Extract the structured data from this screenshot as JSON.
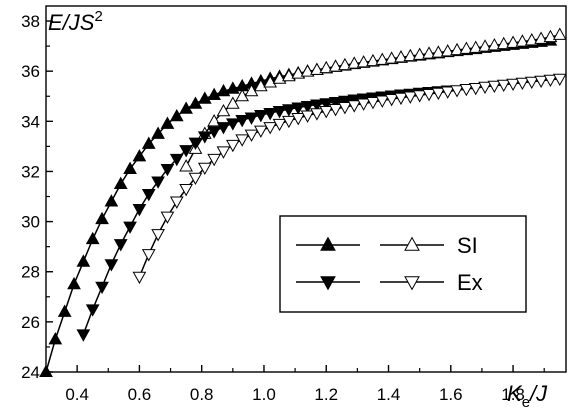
{
  "chart_data": {
    "type": "line",
    "title": "",
    "ylabel": {
      "main": "E/JS",
      "sup": "2"
    },
    "xlabel": {
      "k": "K",
      "sub": "e",
      "tail": "/J"
    },
    "xlim": [
      0.3,
      1.97
    ],
    "ylim": [
      24,
      38.6
    ],
    "xticks": [
      0.4,
      0.6,
      0.8,
      1.0,
      1.2,
      1.4,
      1.6,
      1.8
    ],
    "xtick_labels": [
      "0.4",
      "0.6",
      "0.8",
      "1.0",
      "1.2",
      "1.4",
      "1.6",
      "1.8"
    ],
    "yticks": [
      24,
      26,
      28,
      30,
      32,
      34,
      36,
      38
    ],
    "ytick_labels": [
      "24",
      "26",
      "28",
      "30",
      "32",
      "34",
      "36",
      "38"
    ],
    "grid": false,
    "legend": {
      "placement": "right",
      "rows": [
        {
          "label": "SI",
          "left_marker": "triangle-up-filled",
          "right_marker": "triangle-up-open"
        },
        {
          "label": "Ex",
          "left_marker": "triangle-down-filled",
          "right_marker": "triangle-down-open"
        }
      ]
    },
    "series": [
      {
        "marker": "triangle-up-filled",
        "x": [
          0.3,
          0.33,
          0.36,
          0.39,
          0.42,
          0.45,
          0.48,
          0.51,
          0.54,
          0.57,
          0.6,
          0.63,
          0.66,
          0.69,
          0.72,
          0.75,
          0.78,
          0.81,
          0.84,
          0.87,
          0.9,
          0.93,
          0.96,
          0.99,
          1.02,
          1.05,
          1.08,
          1.11,
          1.14,
          1.17,
          1.2,
          1.23,
          1.26,
          1.29,
          1.32,
          1.35,
          1.38,
          1.41,
          1.44,
          1.47,
          1.5,
          1.53,
          1.56,
          1.59,
          1.62,
          1.65,
          1.68,
          1.71,
          1.74,
          1.77,
          1.8,
          1.83,
          1.86,
          1.89,
          1.92
        ],
        "y": [
          24.0,
          25.3,
          26.4,
          27.5,
          28.4,
          29.3,
          30.1,
          30.8,
          31.5,
          32.1,
          32.6,
          33.1,
          33.5,
          33.9,
          34.2,
          34.5,
          34.7,
          34.9,
          35.05,
          35.2,
          35.3,
          35.4,
          35.5,
          35.6,
          35.7,
          35.78,
          35.85,
          35.92,
          35.99,
          36.05,
          36.11,
          36.17,
          36.22,
          36.28,
          36.33,
          36.38,
          36.43,
          36.48,
          36.53,
          36.58,
          36.62,
          36.67,
          36.71,
          36.76,
          36.8,
          36.84,
          36.88,
          36.93,
          36.97,
          37.01,
          37.05,
          37.09,
          37.13,
          37.17,
          37.22
        ]
      },
      {
        "marker": "triangle-up-open",
        "x": [
          0.75,
          0.78,
          0.81,
          0.84,
          0.87,
          0.9,
          0.93,
          0.96,
          0.99,
          1.02,
          1.05,
          1.08,
          1.11,
          1.14,
          1.17,
          1.2,
          1.23,
          1.26,
          1.29,
          1.32,
          1.35,
          1.38,
          1.41,
          1.44,
          1.47,
          1.5,
          1.53,
          1.56,
          1.59,
          1.62,
          1.65,
          1.68,
          1.71,
          1.74,
          1.77,
          1.8,
          1.83,
          1.86,
          1.89,
          1.92,
          1.95
        ],
        "y": [
          32.2,
          32.9,
          33.5,
          34.0,
          34.4,
          34.7,
          35.0,
          35.2,
          35.4,
          35.55,
          35.7,
          35.8,
          35.9,
          35.98,
          36.05,
          36.12,
          36.18,
          36.24,
          36.3,
          36.35,
          36.4,
          36.45,
          36.5,
          36.55,
          36.6,
          36.65,
          36.7,
          36.74,
          36.79,
          36.84,
          36.89,
          36.93,
          36.98,
          37.03,
          37.08,
          37.13,
          37.18,
          37.23,
          37.29,
          37.36,
          37.45
        ]
      },
      {
        "marker": "triangle-down-filled",
        "x": [
          0.42,
          0.45,
          0.48,
          0.51,
          0.54,
          0.57,
          0.6,
          0.63,
          0.66,
          0.69,
          0.72,
          0.75,
          0.78,
          0.81,
          0.84,
          0.87,
          0.9,
          0.93,
          0.96,
          0.99,
          1.02,
          1.05,
          1.08,
          1.11,
          1.14,
          1.17,
          1.2,
          1.23,
          1.26,
          1.29,
          1.32,
          1.35,
          1.38,
          1.41,
          1.44,
          1.47,
          1.5,
          1.53,
          1.56,
          1.59
        ],
        "y": [
          25.5,
          26.5,
          27.4,
          28.3,
          29.1,
          29.8,
          30.5,
          31.1,
          31.6,
          32.1,
          32.5,
          32.85,
          33.15,
          33.4,
          33.6,
          33.77,
          33.92,
          34.05,
          34.15,
          34.25,
          34.33,
          34.41,
          34.48,
          34.55,
          34.61,
          34.67,
          34.72,
          34.77,
          34.82,
          34.87,
          34.91,
          34.95,
          34.99,
          35.03,
          35.07,
          35.1,
          35.14,
          35.17,
          35.2,
          35.23
        ]
      },
      {
        "marker": "triangle-down-open",
        "x": [
          0.6,
          0.63,
          0.66,
          0.69,
          0.72,
          0.75,
          0.78,
          0.81,
          0.84,
          0.87,
          0.9,
          0.93,
          0.96,
          0.99,
          1.02,
          1.05,
          1.08,
          1.11,
          1.14,
          1.17,
          1.2,
          1.23,
          1.26,
          1.29,
          1.32,
          1.35,
          1.38,
          1.41,
          1.44,
          1.47,
          1.5,
          1.53,
          1.56,
          1.59,
          1.62,
          1.65,
          1.68,
          1.71,
          1.74,
          1.77,
          1.8,
          1.83,
          1.86,
          1.89,
          1.92,
          1.95
        ],
        "y": [
          27.8,
          28.7,
          29.5,
          30.2,
          30.8,
          31.3,
          31.75,
          32.15,
          32.5,
          32.8,
          33.06,
          33.28,
          33.47,
          33.63,
          33.77,
          33.9,
          34.02,
          34.13,
          34.23,
          34.32,
          34.41,
          34.49,
          34.57,
          34.64,
          34.71,
          34.77,
          34.83,
          34.89,
          34.94,
          34.99,
          35.04,
          35.09,
          35.14,
          35.19,
          35.24,
          35.29,
          35.33,
          35.38,
          35.42,
          35.46,
          35.5,
          35.54,
          35.58,
          35.62,
          35.66,
          35.7
        ]
      }
    ]
  }
}
